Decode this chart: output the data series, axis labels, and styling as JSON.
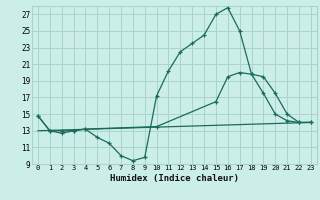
{
  "xlabel": "Humidex (Indice chaleur)",
  "bg_color": "#cceee8",
  "grid_color": "#aad4ce",
  "line_color": "#1a6b5a",
  "xlim": [
    -0.5,
    23.5
  ],
  "ylim": [
    9,
    28
  ],
  "yticks": [
    9,
    11,
    13,
    15,
    17,
    19,
    21,
    23,
    25,
    27
  ],
  "xticks": [
    0,
    1,
    2,
    3,
    4,
    5,
    6,
    7,
    8,
    9,
    10,
    11,
    12,
    13,
    14,
    15,
    16,
    17,
    18,
    19,
    20,
    21,
    22,
    23
  ],
  "line1_x": [
    0,
    1,
    2,
    3,
    4,
    5,
    6,
    7,
    8,
    9,
    10,
    11,
    12,
    13,
    14,
    15,
    16,
    17,
    18,
    19,
    20,
    21,
    22,
    23
  ],
  "line1_y": [
    14.8,
    13.0,
    12.7,
    13.0,
    13.2,
    12.2,
    11.5,
    10.0,
    9.4,
    9.8,
    17.2,
    20.2,
    22.5,
    23.5,
    24.5,
    27.0,
    27.8,
    25.0,
    19.8,
    17.5,
    15.0,
    14.2,
    14.0,
    14.0
  ],
  "line2_x": [
    0,
    1,
    2,
    3,
    4,
    10,
    15,
    16,
    17,
    18,
    19,
    20,
    21,
    22,
    23
  ],
  "line2_y": [
    14.8,
    13.0,
    13.0,
    13.0,
    13.2,
    13.5,
    16.5,
    19.5,
    20.0,
    19.8,
    19.5,
    17.5,
    15.0,
    14.0,
    14.0
  ],
  "line3_x": [
    0,
    23
  ],
  "line3_y": [
    13.0,
    14.0
  ]
}
